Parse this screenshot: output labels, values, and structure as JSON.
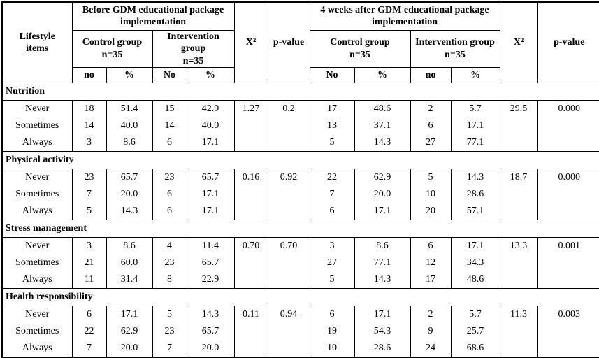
{
  "table": {
    "header": {
      "col_lifestyle": "Lifestyle items",
      "before": {
        "title": "Before GDM educational package implementation",
        "groups": [
          {
            "label": "Control group",
            "n": "n=35",
            "subs": [
              "no",
              "%"
            ]
          },
          {
            "label": "Intervention group",
            "n": "n=35",
            "subs": [
              "No",
              "%"
            ]
          }
        ],
        "chi": "X²",
        "p": "p-value"
      },
      "after": {
        "title": "4 weeks after GDM educational package implementation",
        "groups": [
          {
            "label": "Control group",
            "n": "n=35",
            "subs": [
              "No",
              "%"
            ]
          },
          {
            "label": "Intervention group",
            "n": "n=35",
            "subs": [
              "no",
              "%"
            ]
          }
        ],
        "chi": "X²",
        "p": "p-value"
      }
    },
    "sections": [
      {
        "title": "Nutrition",
        "rows": [
          {
            "item": "Never",
            "values": [
              "18",
              "51.4",
              "15",
              "42.9",
              "1.27",
              "0.2",
              "17",
              "48.6",
              "2",
              "5.7",
              "29.5",
              "0.000"
            ]
          },
          {
            "item": "Sometimes",
            "values": [
              "14",
              "40.0",
              "14",
              "40.0",
              "",
              "",
              "13",
              "37.1",
              "6",
              "17.1",
              "",
              ""
            ]
          },
          {
            "item": "Always",
            "values": [
              "3",
              "8.6",
              "6",
              "17.1",
              "",
              "",
              "5",
              "14.3",
              "27",
              "77.1",
              "",
              ""
            ]
          }
        ]
      },
      {
        "title": "Physical activity",
        "rows": [
          {
            "item": "Never",
            "values": [
              "23",
              "65.7",
              "23",
              "65.7",
              "0.16",
              "0.92",
              "22",
              "62.9",
              "5",
              "14.3",
              "18.7",
              "0.000"
            ]
          },
          {
            "item": "Sometimes",
            "values": [
              "7",
              "20.0",
              "6",
              "17.1",
              "",
              "",
              "7",
              "20.0",
              "10",
              "28.6",
              "",
              ""
            ]
          },
          {
            "item": "Always",
            "values": [
              "5",
              "14.3",
              "6",
              "17.1",
              "",
              "",
              "6",
              "17.1",
              "20",
              "57.1",
              "",
              ""
            ]
          }
        ]
      },
      {
        "title": "Stress management",
        "rows": [
          {
            "item": "Never",
            "values": [
              "3",
              "8.6",
              "4",
              "11.4",
              "0.70",
              "0.70",
              "3",
              "8.6",
              "6",
              "17.1",
              "13.3",
              "0.001"
            ]
          },
          {
            "item": "Sometimes",
            "values": [
              "21",
              "60.0",
              "23",
              "65.7",
              "",
              "",
              "27",
              "77.1",
              "12",
              "34.3",
              "",
              ""
            ]
          },
          {
            "item": "Always",
            "values": [
              "11",
              "31.4",
              "8",
              "22.9",
              "",
              "",
              "5",
              "14.3",
              "17",
              "48.6",
              "",
              ""
            ]
          }
        ]
      },
      {
        "title": "Health responsibility",
        "rows": [
          {
            "item": "Never",
            "values": [
              "6",
              "17.1",
              "5",
              "14.3",
              "0.11",
              "0.94",
              "6",
              "17.1",
              "2",
              "5.7",
              "11.3",
              "0.003"
            ]
          },
          {
            "item": "Sometimes",
            "values": [
              "22",
              "62.9",
              "23",
              "65.7",
              "",
              "",
              "19",
              "54.3",
              "9",
              "25.7",
              "",
              ""
            ]
          },
          {
            "item": "Always",
            "values": [
              "7",
              "20.0",
              "7",
              "20.0",
              "",
              "",
              "10",
              "28.6",
              "24",
              "68.6",
              "",
              ""
            ]
          }
        ]
      }
    ]
  }
}
